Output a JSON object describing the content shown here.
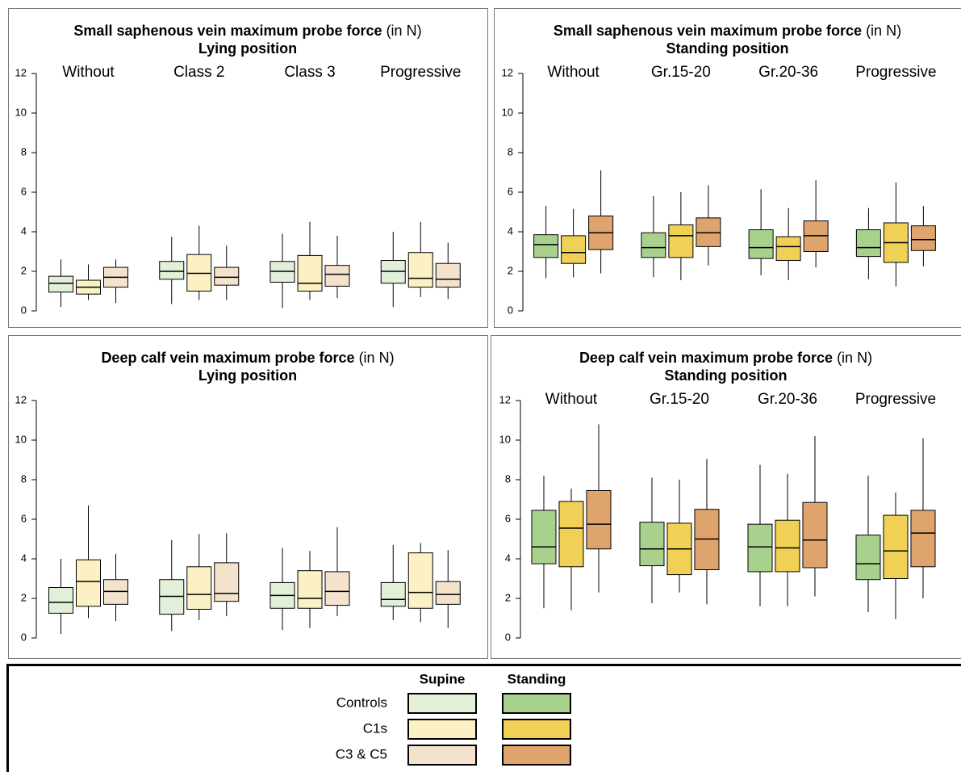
{
  "chart_data": [
    {
      "type": "box",
      "title": "Small saphenous vein maximum probe force",
      "title_unit": "(in N)",
      "subtitle": "Lying position",
      "categories": [
        "Without",
        "Class 2",
        "Class 3",
        "Progressive"
      ],
      "ylim": [
        0,
        12
      ],
      "yticks": [
        0,
        2,
        4,
        6,
        8,
        10,
        12
      ],
      "series": [
        {
          "color": "#e2efd9",
          "whislo": [
            0.2,
            0.35,
            0.15,
            0.2
          ],
          "q1": [
            0.95,
            1.6,
            1.45,
            1.4
          ],
          "med": [
            1.4,
            2.0,
            2.0,
            2.0
          ],
          "q3": [
            1.75,
            2.5,
            2.5,
            2.55
          ],
          "whishi": [
            2.6,
            3.75,
            3.9,
            4.0
          ]
        },
        {
          "color": "#fbf1c4",
          "whislo": [
            0.55,
            0.55,
            0.55,
            0.7
          ],
          "q1": [
            0.85,
            1.0,
            1.0,
            1.2
          ],
          "med": [
            1.2,
            1.9,
            1.4,
            1.65
          ],
          "q3": [
            1.55,
            2.85,
            2.8,
            2.95
          ],
          "whishi": [
            2.35,
            4.3,
            4.5,
            4.5
          ]
        },
        {
          "color": "#f4e2cd",
          "whislo": [
            0.4,
            0.55,
            0.65,
            0.6
          ],
          "q1": [
            1.2,
            1.3,
            1.25,
            1.2
          ],
          "med": [
            1.7,
            1.7,
            1.85,
            1.6
          ],
          "q3": [
            2.2,
            2.2,
            2.3,
            2.4
          ],
          "whishi": [
            2.6,
            3.3,
            3.8,
            3.45
          ]
        }
      ]
    },
    {
      "type": "box",
      "title": "Small saphenous vein maximum probe force",
      "title_unit": "(in N)",
      "subtitle": "Standing position",
      "categories": [
        "Without",
        "Gr.15-20",
        "Gr.20-36",
        "Progressive"
      ],
      "ylim": [
        0,
        12
      ],
      "yticks": [
        0,
        2,
        4,
        6,
        8,
        10,
        12
      ],
      "series": [
        {
          "color": "#a9d18e",
          "whislo": [
            1.65,
            1.7,
            1.8,
            1.6
          ],
          "q1": [
            2.7,
            2.7,
            2.65,
            2.75
          ],
          "med": [
            3.35,
            3.2,
            3.2,
            3.2
          ],
          "q3": [
            3.85,
            3.95,
            4.1,
            4.1
          ],
          "whishi": [
            5.3,
            5.8,
            6.15,
            5.2
          ]
        },
        {
          "color": "#f0d055",
          "whislo": [
            1.7,
            1.55,
            1.55,
            1.25
          ],
          "q1": [
            2.4,
            2.7,
            2.55,
            2.45
          ],
          "med": [
            2.95,
            3.8,
            3.25,
            3.45
          ],
          "q3": [
            3.8,
            4.35,
            3.75,
            4.45
          ],
          "whishi": [
            5.15,
            6.0,
            5.2,
            6.5
          ]
        },
        {
          "color": "#dfa46e",
          "whislo": [
            1.9,
            2.3,
            2.2,
            2.25
          ],
          "q1": [
            3.1,
            3.25,
            3.0,
            3.05
          ],
          "med": [
            3.95,
            3.95,
            3.8,
            3.6
          ],
          "q3": [
            4.8,
            4.7,
            4.55,
            4.3
          ],
          "whishi": [
            7.1,
            6.35,
            6.6,
            5.3
          ]
        }
      ]
    },
    {
      "type": "box",
      "title": "Deep calf vein maximum probe force",
      "title_unit": "(in N)",
      "subtitle": "Lying position",
      "categories": [
        null,
        null,
        null,
        null
      ],
      "ylim": [
        0,
        12
      ],
      "yticks": [
        0,
        2,
        4,
        6,
        8,
        10,
        12
      ],
      "series": [
        {
          "color": "#e2efd9",
          "whislo": [
            0.2,
            0.35,
            0.4,
            0.9
          ],
          "q1": [
            1.25,
            1.2,
            1.5,
            1.6
          ],
          "med": [
            1.8,
            2.1,
            2.15,
            1.95
          ],
          "q3": [
            2.55,
            2.95,
            2.8,
            2.8
          ],
          "whishi": [
            4.0,
            4.95,
            4.55,
            4.7
          ]
        },
        {
          "color": "#fbf1c4",
          "whislo": [
            1.0,
            0.9,
            0.5,
            0.8
          ],
          "q1": [
            1.6,
            1.45,
            1.5,
            1.5
          ],
          "med": [
            2.85,
            2.2,
            2.0,
            2.3
          ],
          "q3": [
            3.95,
            3.6,
            3.4,
            4.3
          ],
          "whishi": [
            6.7,
            5.25,
            4.4,
            4.8
          ]
        },
        {
          "color": "#f4e2cd",
          "whislo": [
            0.85,
            1.1,
            1.1,
            0.5
          ],
          "q1": [
            1.7,
            1.85,
            1.65,
            1.7
          ],
          "med": [
            2.35,
            2.25,
            2.35,
            2.2
          ],
          "q3": [
            2.95,
            3.8,
            3.35,
            2.85
          ],
          "whishi": [
            4.25,
            5.3,
            5.6,
            4.45
          ]
        }
      ]
    },
    {
      "type": "box",
      "title": "Deep calf vein maximum probe force",
      "title_unit": "(in N)",
      "subtitle": "Standing position",
      "categories": [
        "Without",
        "Gr.15-20",
        "Gr.20-36",
        "Progressive"
      ],
      "ylim": [
        0,
        12
      ],
      "yticks": [
        0,
        2,
        4,
        6,
        8,
        10,
        12
      ],
      "series": [
        {
          "color": "#a9d18e",
          "whislo": [
            1.5,
            1.75,
            1.6,
            1.3
          ],
          "q1": [
            3.75,
            3.65,
            3.35,
            2.95
          ],
          "med": [
            4.6,
            4.5,
            4.6,
            3.75
          ],
          "q3": [
            6.45,
            5.85,
            5.75,
            5.2
          ],
          "whishi": [
            8.2,
            8.1,
            8.75,
            8.2
          ]
        },
        {
          "color": "#f0d055",
          "whislo": [
            1.4,
            2.3,
            1.6,
            0.95
          ],
          "q1": [
            3.6,
            3.2,
            3.35,
            3.0
          ],
          "med": [
            5.55,
            4.5,
            4.55,
            4.4
          ],
          "q3": [
            6.9,
            5.8,
            5.95,
            6.2
          ],
          "whishi": [
            7.55,
            8.0,
            8.3,
            7.35
          ]
        },
        {
          "color": "#dfa46e",
          "whislo": [
            2.3,
            1.7,
            2.1,
            2.0
          ],
          "q1": [
            4.5,
            3.45,
            3.55,
            3.6
          ],
          "med": [
            5.75,
            5.0,
            4.95,
            5.3
          ],
          "q3": [
            7.45,
            6.5,
            6.85,
            6.45
          ],
          "whishi": [
            10.8,
            9.05,
            10.2,
            10.1
          ]
        }
      ]
    }
  ],
  "legend": {
    "columns": [
      "Supine",
      "Standing"
    ],
    "rows": [
      {
        "label": "Controls",
        "colors": [
          "#e2efd9",
          "#a9d18e"
        ]
      },
      {
        "label": "C1s",
        "colors": [
          "#fbf1c4",
          "#f0d055"
        ]
      },
      {
        "label": "C3 & C5",
        "colors": [
          "#f4e2cd",
          "#dfa46e"
        ]
      }
    ]
  }
}
